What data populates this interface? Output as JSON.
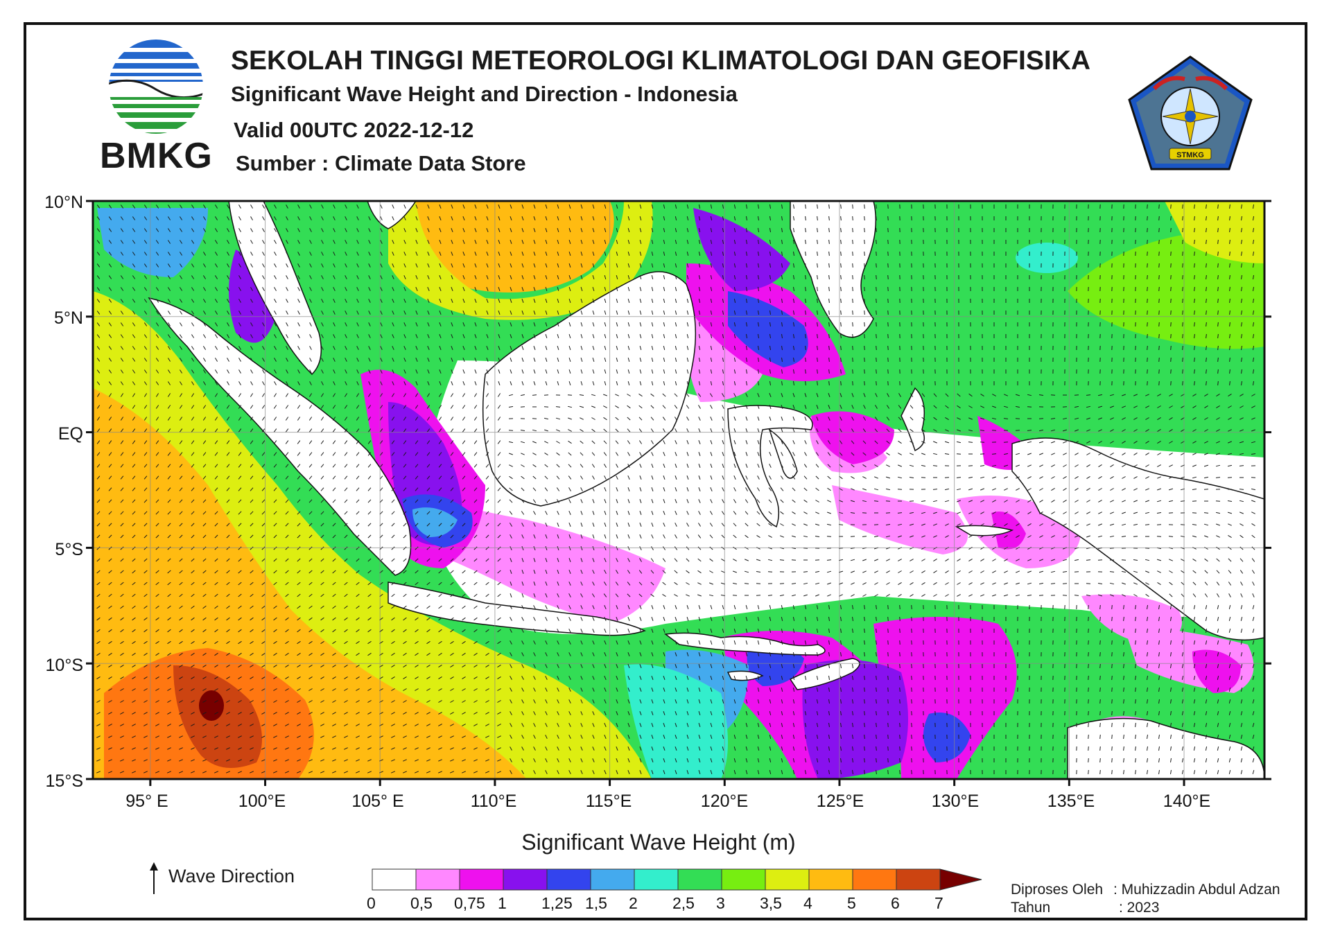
{
  "header": {
    "institution": "SEKOLAH TINGGI METEOROLOGI KLIMATOLOGI DAN GEOFISIKA",
    "product": "Significant Wave Height and Direction - Indonesia",
    "valid": "Valid 00UTC 2022-12-12",
    "source": "Sumber : Climate Data Store",
    "left_logo_text": "BMKG",
    "right_logo_text": "STMKG"
  },
  "map": {
    "lat_labels": [
      "10°N",
      "5°N",
      "EQ",
      "5°S",
      "10°S",
      "15°S"
    ],
    "lon_labels": [
      "95° E",
      "100°E",
      "105° E",
      "110°E",
      "115°E",
      "120°E",
      "125°E",
      "130°E",
      "135°E",
      "140°E"
    ],
    "lon_range": [
      92.5,
      143.5
    ],
    "lat_range": [
      -15,
      10
    ],
    "graticule_step": 5,
    "land_color": "#ffffff",
    "arrows": "wave-direction"
  },
  "colorbar": {
    "title": "Significant Wave Height (m)",
    "ticks": [
      "0",
      "0,5",
      "0,75",
      "1",
      "1,25",
      "1,5",
      "2",
      "2,5",
      "3",
      "3,5",
      "4",
      "5",
      "6",
      "7"
    ],
    "colors": [
      "#ffffff",
      "#ff88ff",
      "#ee11ee",
      "#8811ee",
      "#3344ee",
      "#44aaee",
      "#33eecc",
      "#33dd55",
      "#77ee11",
      "#ddee11",
      "#ffbb11",
      "#ff7711",
      "#cc4411",
      "#770000"
    ]
  },
  "legend": {
    "wave_direction_label": "Wave Direction"
  },
  "footer": {
    "processed_label": "Diproses Oleh",
    "processed_by": ": Muhizzadin Abdul Adzan",
    "year_label": "Tahun",
    "year_value": ": 2023"
  }
}
